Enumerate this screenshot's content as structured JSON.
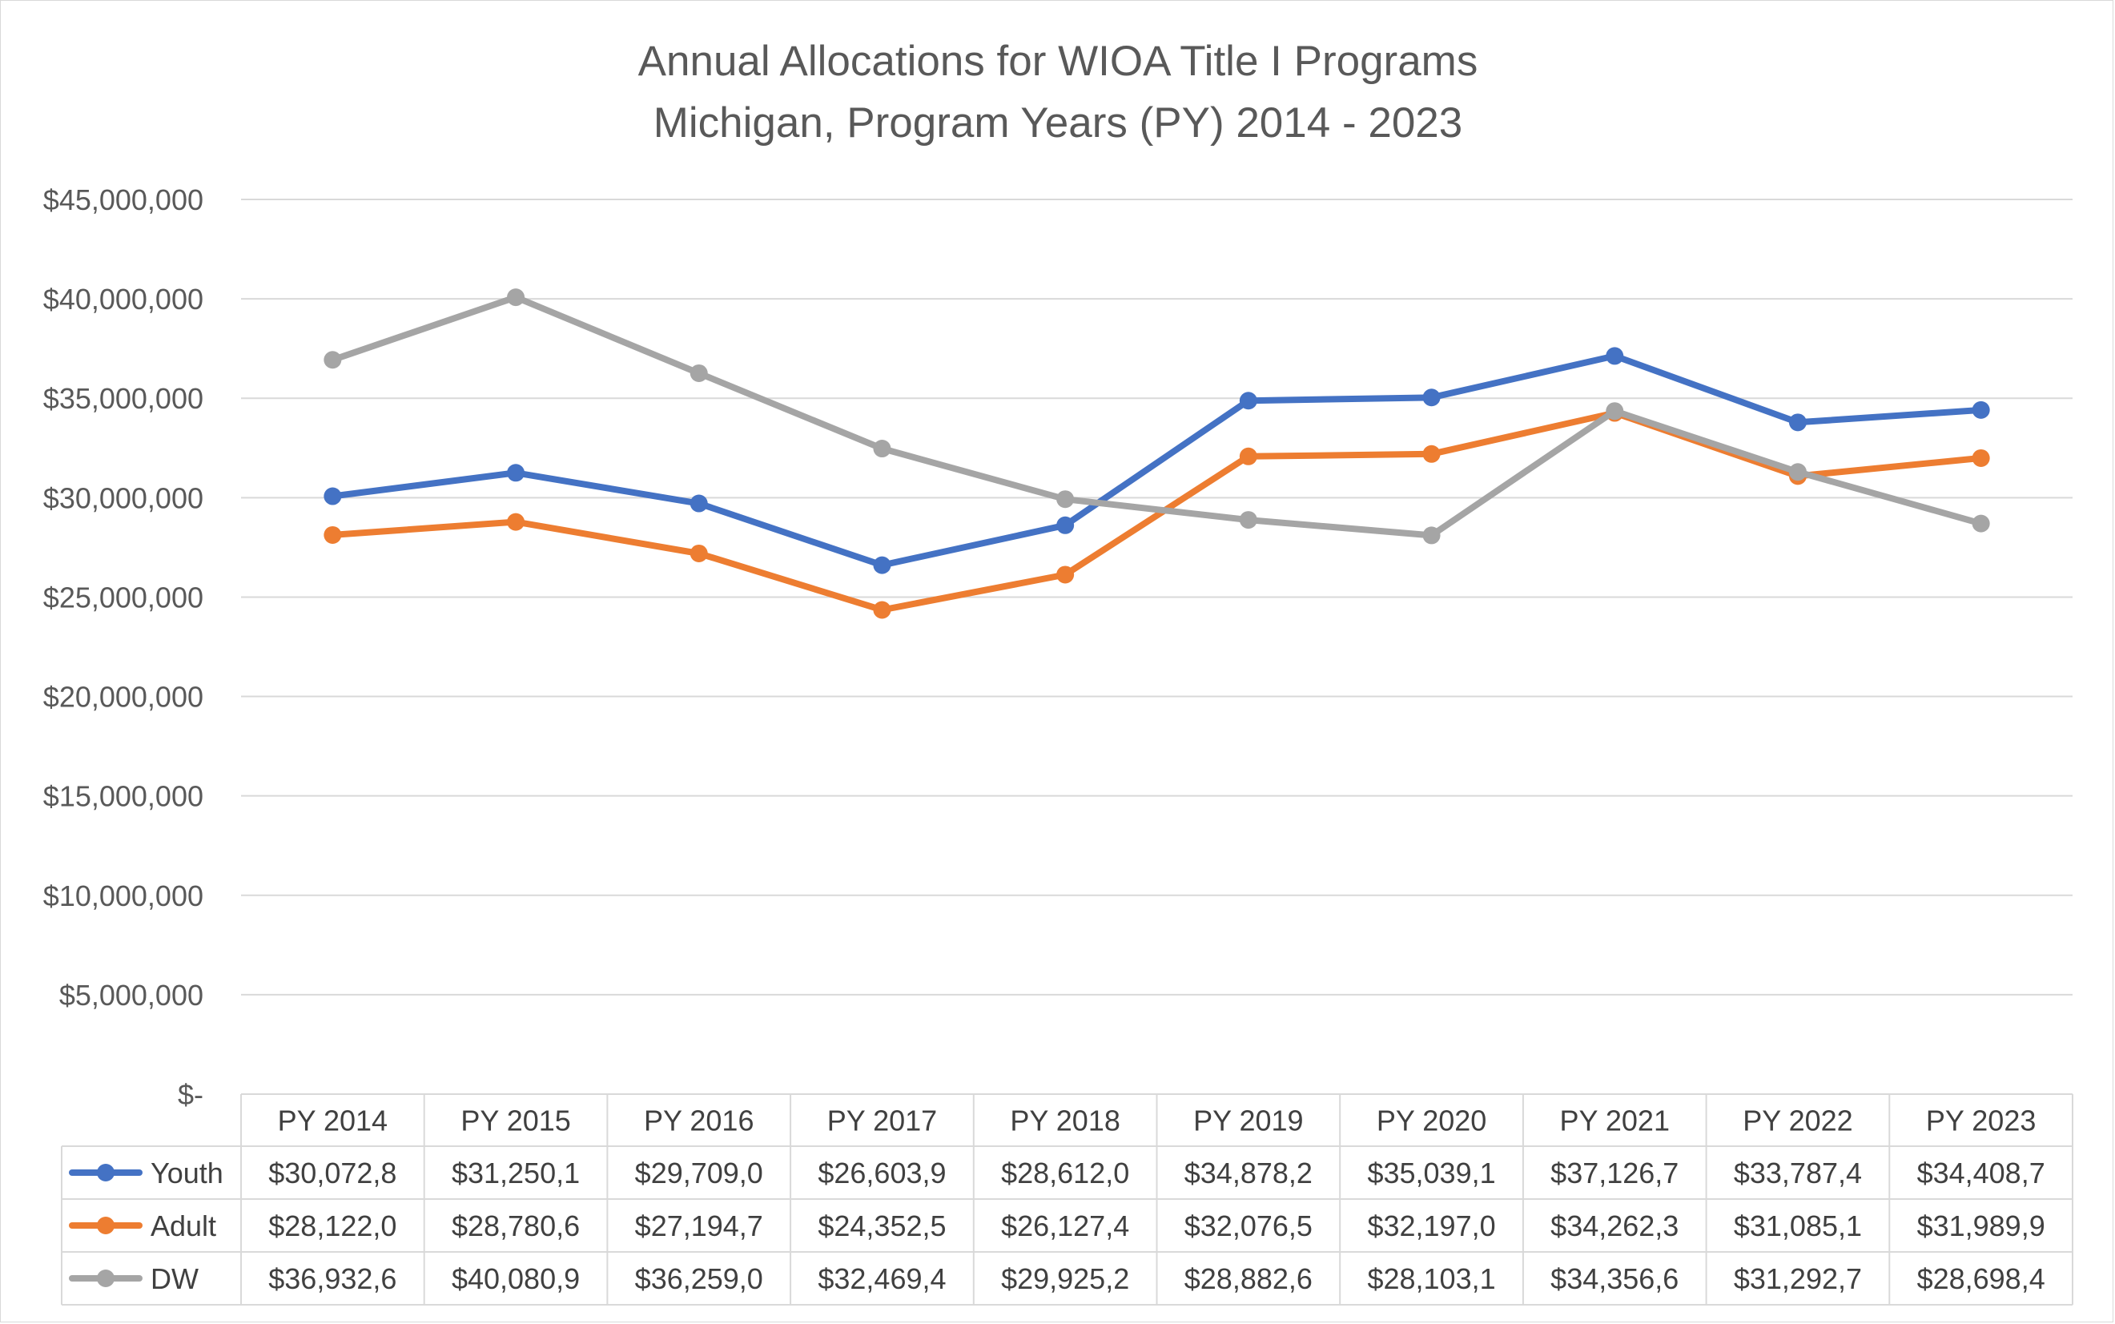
{
  "chart_data": {
    "type": "line",
    "title": "Annual Allocations for WIOA Title I Programs",
    "subtitle": "Michigan, Program Years (PY) 2014 - 2023",
    "xlabel": "",
    "ylabel": "",
    "ylim": [
      0,
      45000000
    ],
    "y_ticks": [
      "$45,000,000",
      "$40,000,000",
      "$35,000,000",
      "$30,000,000",
      "$25,000,000",
      "$20,000,000",
      "$15,000,000",
      "$10,000,000",
      "$5,000,000",
      "$-"
    ],
    "y_tick_values": [
      45000000,
      40000000,
      35000000,
      30000000,
      25000000,
      20000000,
      15000000,
      10000000,
      5000000,
      0
    ],
    "grid": true,
    "legend": "data-table",
    "categories": [
      "PY 2014",
      "PY 2015",
      "PY 2016",
      "PY 2017",
      "PY 2018",
      "PY 2019",
      "PY 2020",
      "PY 2021",
      "PY 2022",
      "PY 2023"
    ],
    "series": [
      {
        "name": "Youth",
        "color": "#4472C4",
        "values": [
          30072800,
          31250100,
          29709000,
          26603900,
          28612000,
          34878200,
          35039100,
          37126700,
          33787400,
          34408700
        ],
        "labels": [
          "$30,072,8",
          "$31,250,1",
          "$29,709,0",
          "$26,603,9",
          "$28,612,0",
          "$34,878,2",
          "$35,039,1",
          "$37,126,7",
          "$33,787,4",
          "$34,408,7"
        ]
      },
      {
        "name": "Adult",
        "color": "#ED7D31",
        "values": [
          28122000,
          28780600,
          27194700,
          24352500,
          26127400,
          32076500,
          32197000,
          34262300,
          31085100,
          31989900
        ],
        "labels": [
          "$28,122,0",
          "$28,780,6",
          "$27,194,7",
          "$24,352,5",
          "$26,127,4",
          "$32,076,5",
          "$32,197,0",
          "$34,262,3",
          "$31,085,1",
          "$31,989,9"
        ]
      },
      {
        "name": "DW",
        "color": "#A5A5A5",
        "values": [
          36932600,
          40080900,
          36259000,
          32469400,
          29925200,
          28882600,
          28103100,
          34356600,
          31292700,
          28698400
        ],
        "labels": [
          "$36,932,6",
          "$40,080,9",
          "$36,259,0",
          "$32,469,4",
          "$29,925,2",
          "$28,882,6",
          "$28,103,1",
          "$34,356,6",
          "$31,292,7",
          "$28,698,4"
        ]
      }
    ]
  }
}
